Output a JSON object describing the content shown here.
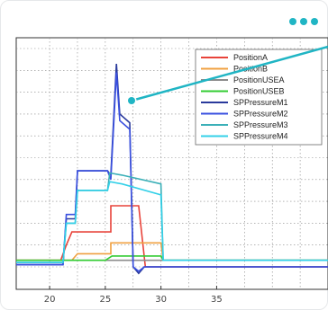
{
  "menu": {
    "icon": "more-horizontal-icon",
    "accent": "#20b5c4"
  },
  "chart_data": {
    "type": "line",
    "title": "",
    "xlabel": "",
    "ylabel": "",
    "xlim": [
      17,
      45
    ],
    "ylim": [
      0,
      100
    ],
    "grid": true,
    "legend_position": "top-right",
    "x_ticks": [
      "20",
      "25",
      "30",
      "35"
    ],
    "x_tick_values": [
      20,
      25,
      30,
      35
    ],
    "series": [
      {
        "name": "PositionA",
        "color": "#e8433a",
        "points": [
          [
            17,
            3
          ],
          [
            21,
            3
          ],
          [
            21.5,
            10
          ],
          [
            22,
            16
          ],
          [
            25.5,
            16
          ],
          [
            25.5,
            28
          ],
          [
            28,
            28
          ],
          [
            28.6,
            0
          ],
          [
            30,
            0
          ],
          [
            45,
            0
          ]
        ]
      },
      {
        "name": "PositionB",
        "color": "#f0a040",
        "points": [
          [
            17,
            3
          ],
          [
            22,
            3
          ],
          [
            22.5,
            6
          ],
          [
            25.5,
            6
          ],
          [
            25.5,
            11
          ],
          [
            30,
            11
          ],
          [
            30.2,
            3
          ],
          [
            45,
            3
          ]
        ]
      },
      {
        "name": "PositionUSEA",
        "color": "#8c8c8c",
        "points": [
          [
            17,
            3
          ],
          [
            45,
            3
          ]
        ]
      },
      {
        "name": "PositionUSEB",
        "color": "#33cc33",
        "points": [
          [
            17,
            3
          ],
          [
            25,
            3
          ],
          [
            25.6,
            5
          ],
          [
            30,
            5
          ],
          [
            30.2,
            3
          ],
          [
            45,
            3
          ]
        ]
      },
      {
        "name": "SPPressureM1",
        "color": "#2a3a9c",
        "points": [
          [
            17,
            1
          ],
          [
            21.2,
            1
          ],
          [
            21.5,
            22
          ],
          [
            22.3,
            22
          ],
          [
            22.5,
            44
          ],
          [
            25.2,
            44
          ],
          [
            25.5,
            42
          ],
          [
            26,
            93
          ],
          [
            26.3,
            70
          ],
          [
            27.2,
            66
          ],
          [
            27.5,
            0
          ],
          [
            28,
            -3
          ],
          [
            28.5,
            0
          ],
          [
            45,
            0
          ]
        ]
      },
      {
        "name": "SPPressureM2",
        "color": "#3a50e0",
        "points": [
          [
            17,
            1
          ],
          [
            21.2,
            1
          ],
          [
            21.5,
            24
          ],
          [
            22.3,
            24
          ],
          [
            22.5,
            44
          ],
          [
            25.2,
            44
          ],
          [
            25.5,
            40
          ],
          [
            26,
            89
          ],
          [
            26.3,
            67
          ],
          [
            27.2,
            63
          ],
          [
            27.5,
            0
          ],
          [
            28,
            -2
          ],
          [
            28.5,
            0
          ],
          [
            45,
            0
          ]
        ]
      },
      {
        "name": "SPPressureM3",
        "color": "#3bb0b8",
        "points": [
          [
            17,
            2
          ],
          [
            21.2,
            2
          ],
          [
            21.5,
            20
          ],
          [
            22.3,
            20
          ],
          [
            22.5,
            35
          ],
          [
            25.2,
            35
          ],
          [
            25.4,
            43
          ],
          [
            26.5,
            42
          ],
          [
            30,
            38
          ],
          [
            30.2,
            3
          ],
          [
            45,
            3
          ]
        ]
      },
      {
        "name": "SPPressureM4",
        "color": "#33d0e8",
        "points": [
          [
            17,
            2
          ],
          [
            21.2,
            2
          ],
          [
            21.5,
            20
          ],
          [
            22.3,
            20
          ],
          [
            22.5,
            35
          ],
          [
            25.2,
            35
          ],
          [
            25.4,
            39
          ],
          [
            26.5,
            38
          ],
          [
            30,
            33
          ],
          [
            30.2,
            3
          ],
          [
            45,
            3
          ]
        ]
      }
    ],
    "annotation": {
      "marker": "callout-dot",
      "color": "#20b5c4"
    }
  }
}
